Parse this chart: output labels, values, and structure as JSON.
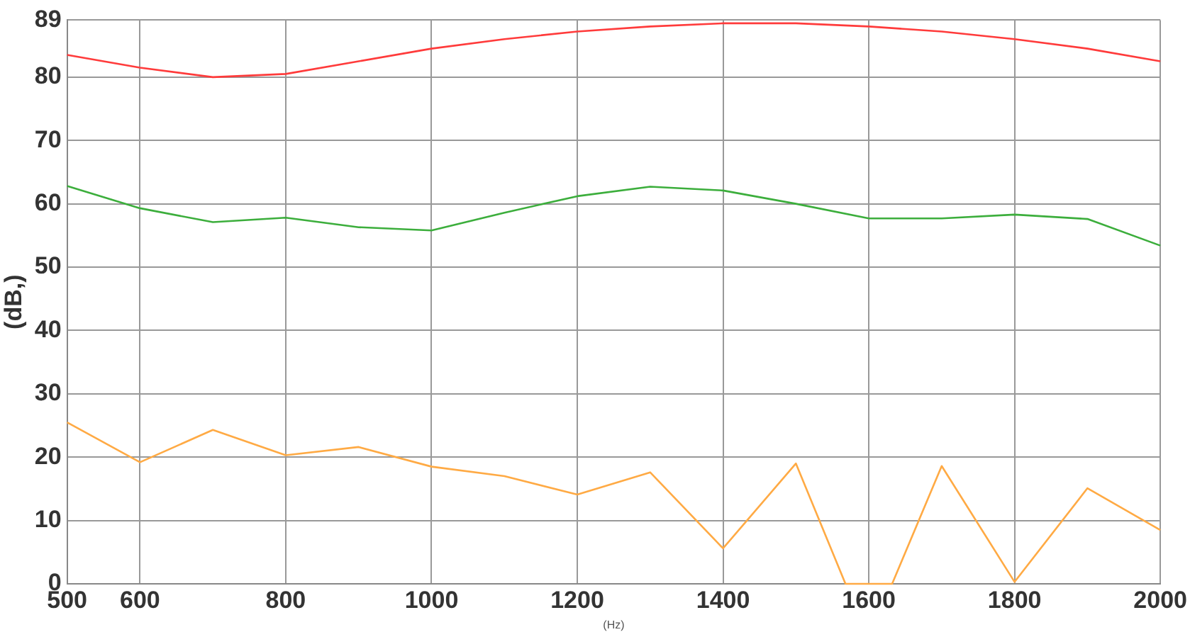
{
  "chart_data": {
    "type": "line",
    "xlabel": "(Hz)",
    "ylabel": "(dB,)",
    "x": [
      500,
      600,
      700,
      800,
      900,
      1000,
      1100,
      1200,
      1300,
      1400,
      1500,
      1600,
      1700,
      1800,
      1900,
      2000
    ],
    "series": [
      {
        "color": "#ff3b3b",
        "values": [
          83.5,
          81.5,
          80,
          80.5,
          82.5,
          84.5,
          86,
          87.2,
          88,
          88.5,
          88.5,
          88,
          87.2,
          86,
          84.5,
          82.5
        ]
      },
      {
        "color": "#3cae3c",
        "values": [
          62.8,
          59.3,
          57.1,
          57.8,
          56.3,
          55.8,
          58.6,
          61.2,
          62.7,
          62.1,
          60,
          57.7,
          57.7,
          58.3,
          57.6,
          53.4
        ]
      },
      {
        "color": "#ffaa44",
        "x": [
          500,
          600,
          700,
          800,
          900,
          1000,
          1100,
          1200,
          1300,
          1400,
          1500,
          1568,
          1632,
          1700,
          1800,
          1900,
          2000
        ],
        "values": [
          25.5,
          19.2,
          24.3,
          20.3,
          21.6,
          18.5,
          17,
          14.1,
          17.6,
          5.6,
          19,
          0,
          0,
          18.6,
          0.3,
          15.1,
          8.5
        ]
      }
    ],
    "xlim": [
      500,
      2000
    ],
    "xticks": [
      500,
      600,
      800,
      1000,
      1200,
      1400,
      1600,
      1800,
      2000
    ],
    "ylim": [
      0,
      89
    ],
    "yticks": [
      0,
      10,
      20,
      30,
      40,
      50,
      60,
      70,
      80,
      89
    ],
    "grid": true,
    "legend": false,
    "marker": "none",
    "line_style": "solid"
  }
}
